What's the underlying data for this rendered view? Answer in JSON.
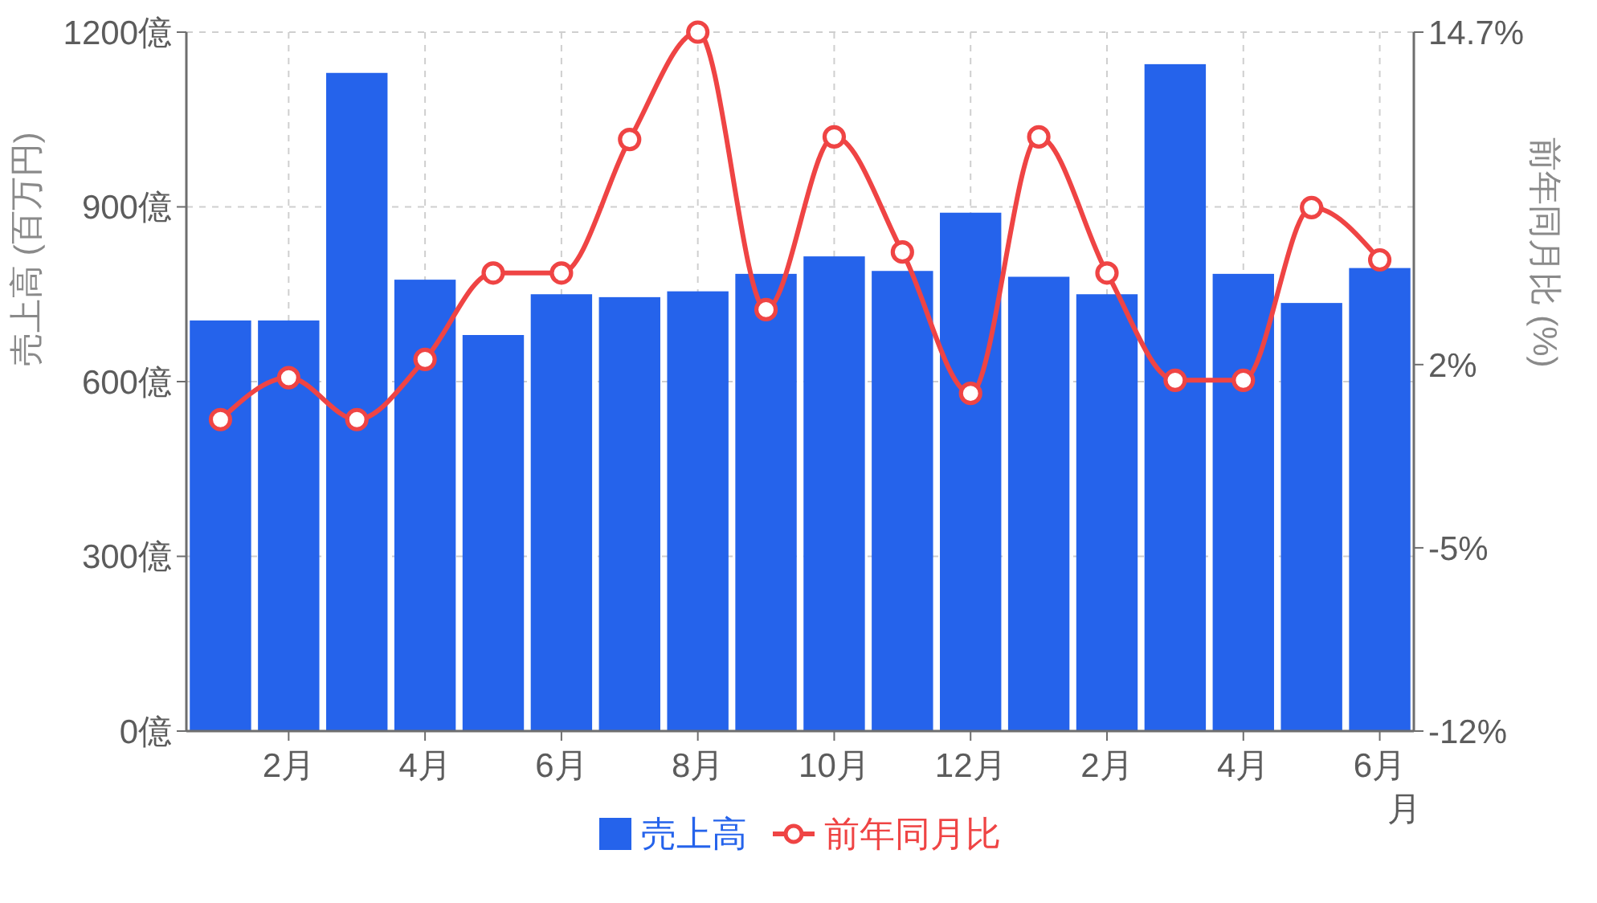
{
  "chart_data": {
    "type": "bar",
    "xlabel": "月",
    "ylabel": "売上高 (百万円)",
    "y2label": "前年同月比 (%)",
    "categories": [
      null,
      "2月",
      null,
      "4月",
      null,
      "6月",
      null,
      "8月",
      null,
      "10月",
      null,
      "12月",
      null,
      "2月",
      null,
      "4月",
      null,
      "6月"
    ],
    "ylim": [
      0,
      1200
    ],
    "yticks": [
      {
        "value": 0,
        "label": "0億"
      },
      {
        "value": 300,
        "label": "300億"
      },
      {
        "value": 600,
        "label": "600億"
      },
      {
        "value": 900,
        "label": "900億"
      },
      {
        "value": 1200,
        "label": "1200億"
      }
    ],
    "y2lim": [
      -12,
      14.7
    ],
    "y2ticks": [
      {
        "value": -12,
        "label": "-12%"
      },
      {
        "value": -5,
        "label": "-5%"
      },
      {
        "value": 2,
        "label": "2%"
      },
      {
        "value": 14.7,
        "label": "14.7%"
      }
    ],
    "series": [
      {
        "name": "売上高",
        "color": "#2563eb",
        "values": [
          705,
          705,
          1130,
          775,
          680,
          750,
          745,
          755,
          785,
          815,
          790,
          890,
          780,
          750,
          1145,
          785,
          735,
          795
        ]
      },
      {
        "name": "前年同月比",
        "type": "line",
        "axis": "y2",
        "color": "#ef4444",
        "values": [
          -0.1,
          1.5,
          -0.1,
          2.2,
          5.5,
          5.5,
          10.6,
          14.7,
          4.1,
          10.7,
          6.3,
          0.9,
          10.7,
          5.5,
          1.4,
          1.4,
          8.0,
          6.0
        ]
      }
    ],
    "marker": "circle",
    "grid": true,
    "legend": "bottom"
  }
}
